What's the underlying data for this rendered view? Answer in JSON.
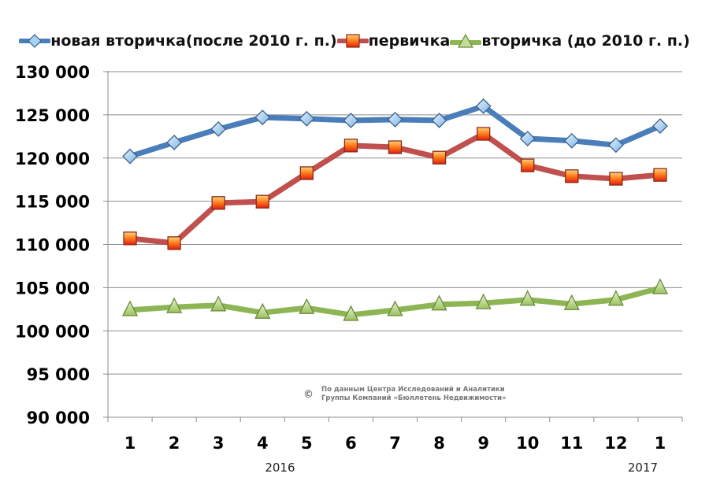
{
  "chart_data": {
    "type": "line",
    "title": "",
    "xlabel": "",
    "ylabel": "",
    "categories": [
      "1",
      "2",
      "3",
      "4",
      "5",
      "6",
      "7",
      "8",
      "9",
      "10",
      "11",
      "12",
      "1"
    ],
    "year_labels": [
      {
        "label": "2016",
        "under_category_index": 5
      },
      {
        "label": "2017",
        "under_category_index": 12
      }
    ],
    "ylim": [
      90000,
      130000
    ],
    "y_ticks": [
      90000,
      95000,
      100000,
      105000,
      110000,
      115000,
      120000,
      125000,
      130000
    ],
    "y_tick_labels": [
      "90 000",
      "95 000",
      "100 000",
      "105 000",
      "110 000",
      "115 000",
      "120 000",
      "125 000",
      "130 000"
    ],
    "grid": "horizontal",
    "legend_position": "top",
    "series": [
      {
        "name": "новая вторичка(после 2010 г. п.)",
        "color": "#4a7ebb",
        "marker": "diamond",
        "marker_color": "#a9d0f5",
        "values": [
          120200,
          121800,
          123350,
          124700,
          124550,
          124350,
          124450,
          124350,
          126000,
          122250,
          122000,
          121500,
          123700
        ]
      },
      {
        "name": "первичка",
        "color": "#c0504d",
        "marker": "square",
        "marker_color": "#ff6a10",
        "values": [
          110700,
          110150,
          114800,
          114950,
          118250,
          121450,
          121250,
          120050,
          122800,
          119150,
          117900,
          117600,
          118050
        ]
      },
      {
        "name": "вторичка (до 2010 г. п.)",
        "color": "#8db554",
        "marker": "triangle",
        "marker_color": "#c4dc9a",
        "values": [
          102400,
          102750,
          102950,
          102100,
          102650,
          101850,
          102400,
          103050,
          103200,
          103600,
          103100,
          103600,
          104950
        ]
      }
    ]
  },
  "source_note": {
    "symbol": "©",
    "line1": "По данным Центра Исследований и Аналитики",
    "line2": "Группы Компаний «Бюллетень Недвижимости»"
  }
}
